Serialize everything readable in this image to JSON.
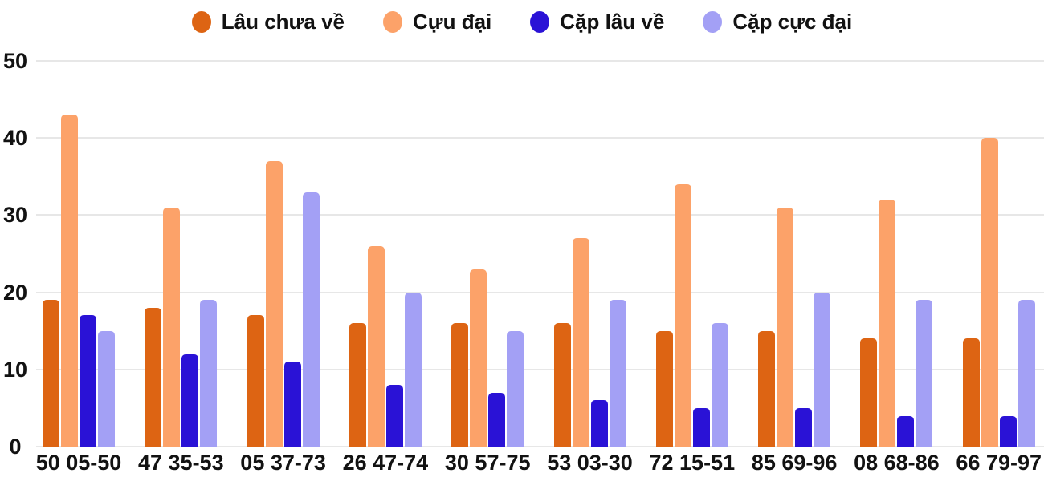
{
  "chart_data": {
    "type": "bar",
    "title": "",
    "categories": [
      "50 05-50",
      "47 35-53",
      "05 37-73",
      "26 47-74",
      "30 57-75",
      "53 03-30",
      "72 15-51",
      "85 69-96",
      "08 68-86",
      "66 79-97"
    ],
    "series": [
      {
        "name": "Lâu chưa về",
        "color": "#dd6413",
        "values": [
          19,
          18,
          17,
          16,
          16,
          16,
          15,
          15,
          14,
          14
        ]
      },
      {
        "name": "Cựu đại",
        "color": "#fca269",
        "values": [
          43,
          31,
          37,
          26,
          23,
          27,
          34,
          31,
          32,
          40
        ]
      },
      {
        "name": "Cặp lâu về",
        "color": "#2a12d6",
        "values": [
          17,
          12,
          11,
          8,
          7,
          6,
          5,
          5,
          4,
          4
        ]
      },
      {
        "name": "Cặp cực đại",
        "color": "#a3a0f5",
        "values": [
          15,
          19,
          33,
          20,
          15,
          19,
          16,
          20,
          19,
          19
        ]
      }
    ],
    "ylim": [
      0,
      50
    ],
    "yticks": [
      0,
      10,
      20,
      30,
      40,
      50
    ],
    "grid": true,
    "legend_position": "top"
  },
  "colors": {
    "background": "#ffffff",
    "grid": "#e7e7e7",
    "text": "#121212"
  }
}
